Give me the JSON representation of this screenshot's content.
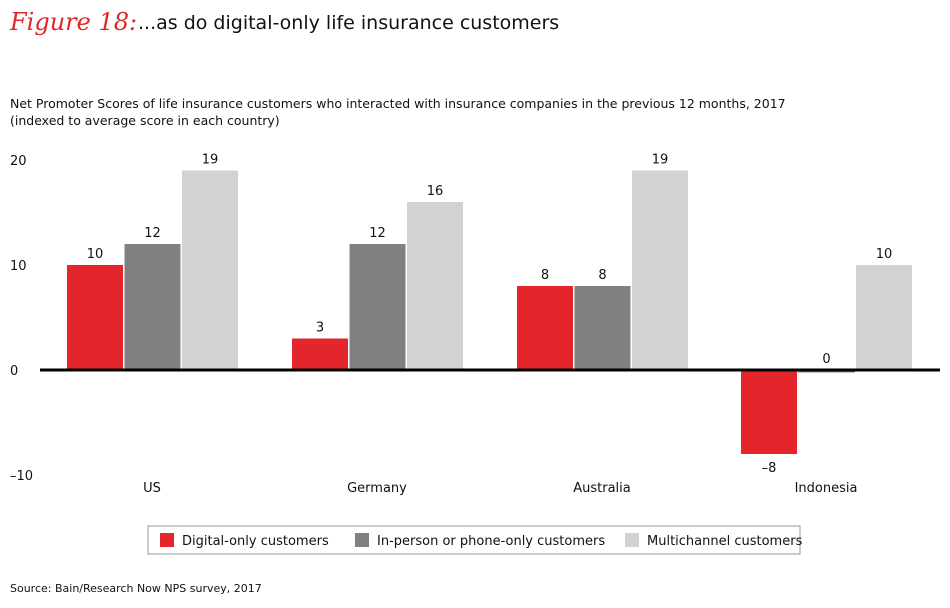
{
  "figure_label": "Figure 18:",
  "chart_data": {
    "type": "bar",
    "title": "...as do digital-only life insurance customers",
    "subtitle": "Net Promoter Scores of life insurance customers who interacted with insurance companies in the previous 12 months, 2017",
    "subtitle2": "(indexed to average score in each country)",
    "categories": [
      "US",
      "Germany",
      "Australia",
      "Indonesia"
    ],
    "series": [
      {
        "name": "Digital-only customers",
        "values": [
          10,
          3,
          8,
          -8
        ],
        "color": "#e3262b",
        "labels": [
          "10",
          "3",
          "8",
          "–8"
        ]
      },
      {
        "name": "In-person or phone-only customers",
        "values": [
          12,
          12,
          8,
          0
        ],
        "color": "#808083",
        "labels": [
          "12",
          "12",
          "8",
          "0"
        ]
      },
      {
        "name": "Multichannel customers",
        "values": [
          19,
          16,
          19,
          10
        ],
        "color": "#d1d2d4",
        "labels": [
          "19",
          "16",
          "19",
          "10"
        ]
      }
    ],
    "ylim": [
      -10,
      20
    ],
    "yticks": [
      20,
      10,
      0,
      -10
    ],
    "ytick_labels": [
      "20",
      "10",
      "0",
      "–10"
    ],
    "grid": false,
    "legend": "bottom",
    "source": "Source: Bain/Research Now NPS survey, 2017"
  }
}
